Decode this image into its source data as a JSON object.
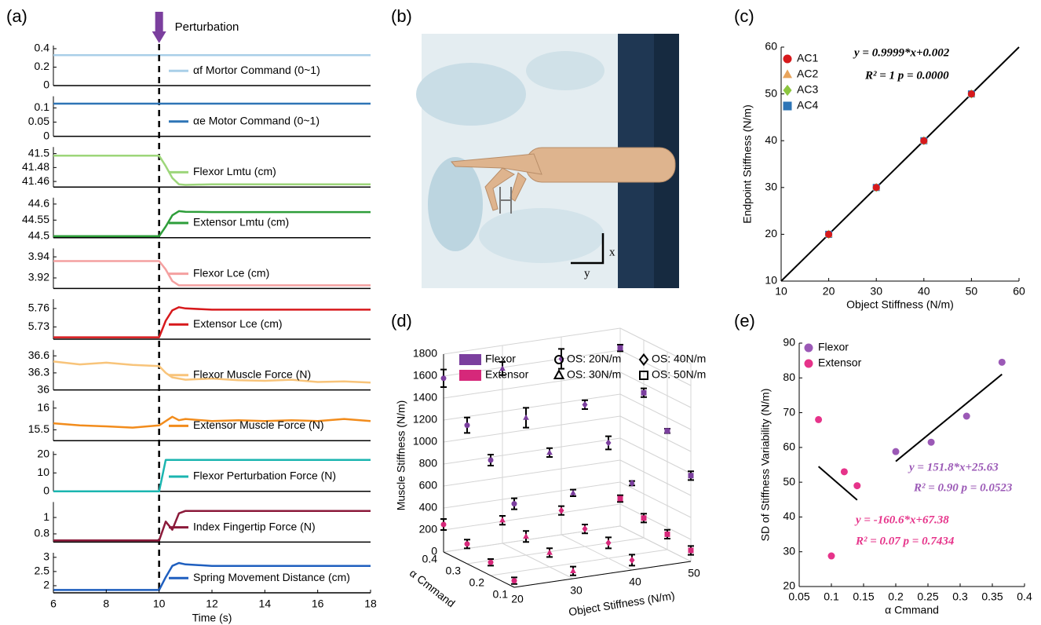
{
  "image_panel": {
    "label": "(b)",
    "axis_labels": [
      "x",
      "y"
    ]
  },
  "chart_data": [
    {
      "type": "line",
      "panel": "(a)",
      "annotation": {
        "text": "Perturbation",
        "x": 10
      },
      "x": [
        6,
        7,
        8,
        9,
        10,
        10.25,
        10.5,
        10.75,
        11,
        12,
        13,
        14,
        15,
        16,
        17,
        18
      ],
      "xlim": [
        6,
        18
      ],
      "ylim": [
        0,
        0.4
      ],
      "yticks": [
        0,
        0.2,
        0.4
      ],
      "series": [
        {
          "name": "αf Mortor Command (0~1)",
          "color": "#a9cfe8",
          "values": [
            0.33,
            0.33,
            0.33,
            0.33,
            0.33,
            0.33,
            0.33,
            0.33,
            0.33,
            0.33,
            0.33,
            0.33,
            0.33,
            0.33,
            0.33,
            0.33
          ]
        }
      ]
    },
    {
      "type": "line",
      "x": [
        6,
        7,
        8,
        9,
        10,
        10.25,
        10.5,
        10.75,
        11,
        12,
        13,
        14,
        15,
        16,
        17,
        18
      ],
      "xlim": [
        6,
        18
      ],
      "ylim": [
        0,
        0.13
      ],
      "yticks": [
        0,
        0.05,
        0.1
      ],
      "series": [
        {
          "name": "αe Motor Command (0~1)",
          "color": "#2e75b6",
          "values": [
            0.115,
            0.115,
            0.115,
            0.115,
            0.115,
            0.115,
            0.115,
            0.115,
            0.115,
            0.115,
            0.115,
            0.115,
            0.115,
            0.115,
            0.115,
            0.115
          ]
        }
      ]
    },
    {
      "type": "line",
      "x": [
        6,
        7,
        8,
        9,
        10,
        10.25,
        10.5,
        10.75,
        11,
        12,
        13,
        14,
        15,
        16,
        17,
        18
      ],
      "xlim": [
        6,
        18
      ],
      "ylim": [
        41.452,
        41.505
      ],
      "yticks": [
        41.46,
        41.48,
        41.5
      ],
      "series": [
        {
          "name": "Flexor Lmtu (cm)",
          "color": "#9dd67a",
          "values": [
            41.497,
            41.497,
            41.497,
            41.497,
            41.497,
            41.482,
            41.465,
            41.456,
            41.455,
            41.456,
            41.456,
            41.456,
            41.456,
            41.456,
            41.456,
            41.456
          ]
        }
      ]
    },
    {
      "type": "line",
      "x": [
        6,
        7,
        8,
        9,
        10,
        10.25,
        10.5,
        10.75,
        11,
        12,
        13,
        14,
        15,
        16,
        17,
        18
      ],
      "xlim": [
        6,
        18
      ],
      "ylim": [
        44.495,
        44.61
      ],
      "yticks": [
        44.5,
        44.55,
        44.6
      ],
      "series": [
        {
          "name": "Extensor Lmtu (cm)",
          "color": "#2e9e3a",
          "values": [
            44.5,
            44.5,
            44.5,
            44.5,
            44.5,
            44.53,
            44.565,
            44.578,
            44.576,
            44.575,
            44.575,
            44.575,
            44.575,
            44.575,
            44.575,
            44.575
          ]
        }
      ]
    },
    {
      "type": "line",
      "x": [
        6,
        7,
        8,
        9,
        10,
        10.25,
        10.5,
        10.75,
        11,
        12,
        13,
        14,
        15,
        16,
        17,
        18
      ],
      "xlim": [
        6,
        18
      ],
      "ylim": [
        3.91,
        3.945
      ],
      "yticks": [
        3.92,
        3.94
      ],
      "series": [
        {
          "name": "Flexor Lce (cm)",
          "color": "#f4a0a0",
          "values": [
            3.936,
            3.936,
            3.936,
            3.936,
            3.936,
            3.928,
            3.917,
            3.913,
            3.913,
            3.913,
            3.913,
            3.913,
            3.913,
            3.913,
            3.913,
            3.913
          ]
        }
      ]
    },
    {
      "type": "line",
      "x": [
        6,
        7,
        8,
        9,
        10,
        10.25,
        10.5,
        10.75,
        11,
        12,
        13,
        14,
        15,
        16,
        17,
        18
      ],
      "xlim": [
        6,
        18
      ],
      "ylim": [
        5.71,
        5.77
      ],
      "yticks": [
        5.73,
        5.76
      ],
      "series": [
        {
          "name": "Extensor Lce (cm)",
          "color": "#d7191c",
          "values": [
            5.713,
            5.713,
            5.713,
            5.713,
            5.713,
            5.74,
            5.757,
            5.762,
            5.76,
            5.758,
            5.758,
            5.758,
            5.758,
            5.758,
            5.758,
            5.758
          ]
        }
      ]
    },
    {
      "type": "line",
      "x": [
        6,
        7,
        8,
        9,
        10,
        10.25,
        10.5,
        10.75,
        11,
        12,
        13,
        14,
        15,
        16,
        17,
        18
      ],
      "xlim": [
        6,
        18
      ],
      "ylim": [
        36,
        36.65
      ],
      "yticks": [
        36,
        36.3,
        36.6
      ],
      "series": [
        {
          "name": "Flexor Muscle Force (N)",
          "color": "#f8c47a",
          "values": [
            36.5,
            36.45,
            36.48,
            36.44,
            36.42,
            36.3,
            36.22,
            36.2,
            36.18,
            36.2,
            36.17,
            36.16,
            36.18,
            36.14,
            36.15,
            36.13
          ]
        }
      ]
    },
    {
      "type": "line",
      "x": [
        6,
        7,
        8,
        9,
        10,
        10.25,
        10.5,
        10.75,
        11,
        12,
        13,
        14,
        15,
        16,
        17,
        18
      ],
      "xlim": [
        6,
        18
      ],
      "ylim": [
        15.25,
        16.1
      ],
      "yticks": [
        15.5,
        16
      ],
      "series": [
        {
          "name": "Extensor Muscle Force (N)",
          "color": "#f28c1c",
          "values": [
            15.65,
            15.6,
            15.58,
            15.55,
            15.6,
            15.7,
            15.8,
            15.72,
            15.75,
            15.7,
            15.72,
            15.7,
            15.72,
            15.7,
            15.75,
            15.7
          ]
        }
      ]
    },
    {
      "type": "line",
      "x": [
        6,
        7,
        8,
        9,
        10,
        10.25,
        10.5,
        10.75,
        11,
        12,
        13,
        14,
        15,
        16,
        17,
        18
      ],
      "xlim": [
        6,
        18
      ],
      "ylim": [
        0,
        20
      ],
      "yticks": [
        0,
        10,
        20
      ],
      "series": [
        {
          "name": "Flexor Perturbation Force (N)",
          "color": "#1bb5b0",
          "values": [
            0,
            0,
            0,
            0,
            0,
            17,
            17,
            17,
            17,
            17,
            17,
            17,
            17,
            17,
            17,
            17
          ]
        }
      ]
    },
    {
      "type": "line",
      "x": [
        6,
        7,
        8,
        9,
        10,
        10.25,
        10.5,
        10.75,
        11,
        12,
        13,
        14,
        15,
        16,
        17,
        18
      ],
      "xlim": [
        6,
        18
      ],
      "ylim": [
        0.7,
        1.15
      ],
      "yticks": [
        0.8,
        1
      ],
      "series": [
        {
          "name": "Index Fingertip Force (N)",
          "color": "#8b1a3a",
          "values": [
            0.72,
            0.72,
            0.72,
            0.72,
            0.72,
            0.95,
            0.85,
            1.05,
            1.08,
            1.08,
            1.08,
            1.08,
            1.08,
            1.08,
            1.08,
            1.08
          ]
        }
      ]
    },
    {
      "type": "line",
      "x": [
        6,
        7,
        8,
        9,
        10,
        10.25,
        10.5,
        10.75,
        11,
        12,
        13,
        14,
        15,
        16,
        17,
        18
      ],
      "xlim": [
        6,
        18
      ],
      "xticks": [
        6,
        8,
        10,
        12,
        14,
        16,
        18
      ],
      "xlabel": "Time (s)",
      "ylim": [
        1.75,
        3.05
      ],
      "yticks": [
        2,
        2.5,
        3
      ],
      "series": [
        {
          "name": "Spring Movement Distance (cm)",
          "color": "#1f5fbf",
          "values": [
            1.85,
            1.85,
            1.85,
            1.85,
            1.85,
            2.3,
            2.7,
            2.8,
            2.75,
            2.7,
            2.7,
            2.7,
            2.7,
            2.7,
            2.7,
            2.7
          ]
        }
      ]
    },
    {
      "type": "scatter",
      "panel": "(c)",
      "xlabel": "Object Stiffness (N/m)",
      "ylabel": "Endpoint Stiffness (N/m)",
      "xlim": [
        10,
        60
      ],
      "xticks": [
        10,
        20,
        30,
        40,
        50,
        60
      ],
      "ylim": [
        10,
        60
      ],
      "yticks": [
        10,
        20,
        30,
        40,
        50,
        60
      ],
      "series": [
        {
          "name": "AC1",
          "color": "#d7191c",
          "marker": "circle",
          "x": [
            20,
            30,
            40,
            50
          ],
          "values": [
            20,
            30,
            40,
            50
          ]
        },
        {
          "name": "AC2",
          "color": "#e8a45c",
          "marker": "triangle",
          "x": [
            20,
            30,
            40,
            50
          ],
          "values": [
            20,
            30,
            40,
            50
          ]
        },
        {
          "name": "AC3",
          "color": "#8cc63f",
          "marker": "diamond",
          "x": [
            20,
            30,
            40,
            50
          ],
          "values": [
            20,
            30,
            40,
            50
          ]
        },
        {
          "name": "AC4",
          "color": "#2e75b6",
          "marker": "square",
          "x": [
            20,
            30,
            40,
            50
          ],
          "values": [
            20,
            30,
            40,
            50
          ]
        }
      ],
      "fits": [
        {
          "slope": 0.9999,
          "intercept": 0.002,
          "x": [
            10,
            60
          ],
          "color": "#000000"
        }
      ],
      "annotations": [
        {
          "text": "y = 0.9999*x+0.002",
          "color": "#000000"
        },
        {
          "text": "R² = 1 p = 0.0000",
          "color": "#000000"
        }
      ]
    },
    {
      "type": "scatter3d",
      "panel": "(d)",
      "xlabel": "Object Stiffness (N/m)",
      "ylabel": "Muscle Stiffness (N/m)",
      "zlabel": "α Cmmand",
      "xlim": [
        20,
        50
      ],
      "xticks": [
        20,
        30,
        40,
        50
      ],
      "zlim": [
        0.1,
        0.4
      ],
      "zticks": [
        0.1,
        0.2,
        0.3,
        0.4
      ],
      "ylim": [
        0,
        1800
      ],
      "yticks": [
        0,
        200,
        400,
        600,
        800,
        1000,
        1200,
        1400,
        1600,
        1800
      ],
      "marker_legend": [
        {
          "label": "OS: 20N/m",
          "value": 20,
          "marker": "circle"
        },
        {
          "label": "OS: 40N/m",
          "value": 40,
          "marker": "diamond"
        },
        {
          "label": "OS: 30N/m",
          "value": 30,
          "marker": "triangle"
        },
        {
          "label": "OS: 50N/m",
          "value": 50,
          "marker": "square"
        }
      ],
      "series": [
        {
          "name": "Flexor",
          "color": "#7b3f9e",
          "x": [
            20,
            30,
            40,
            50,
            20,
            30,
            40,
            50,
            20,
            30,
            40,
            50,
            20,
            30,
            40,
            50
          ],
          "z": [
            0.4,
            0.4,
            0.4,
            0.4,
            0.3,
            0.3,
            0.3,
            0.3,
            0.2,
            0.2,
            0.2,
            0.2,
            0.1,
            0.1,
            0.1,
            0.1
          ],
          "values": [
            1580,
            1590,
            1600,
            1620,
            1260,
            1250,
            1290,
            1320,
            1050,
            1040,
            1050,
            1080,
            760,
            780,
            790,
            780
          ],
          "errors": [
            80,
            60,
            90,
            30,
            70,
            90,
            40,
            40,
            50,
            40,
            60,
            20,
            50,
            30,
            20,
            40
          ]
        },
        {
          "name": "Extensor",
          "color": "#d6287a",
          "x": [
            20,
            30,
            40,
            50,
            20,
            30,
            40,
            50,
            20,
            30,
            40,
            50,
            20,
            30,
            40,
            50
          ],
          "z": [
            0.4,
            0.4,
            0.4,
            0.4,
            0.3,
            0.3,
            0.3,
            0.3,
            0.2,
            0.2,
            0.2,
            0.2,
            0.1,
            0.1,
            0.1,
            0.1
          ],
          "values": [
            250,
            210,
            220,
            250,
            180,
            170,
            160,
            180,
            120,
            130,
            140,
            140,
            60,
            70,
            90,
            100
          ],
          "errors": [
            50,
            40,
            40,
            30,
            40,
            50,
            40,
            40,
            30,
            40,
            50,
            40,
            30,
            40,
            50,
            40
          ]
        }
      ]
    },
    {
      "type": "scatter",
      "panel": "(e)",
      "xlabel": "α Cmmand",
      "ylabel": "SD of Stiffness Variability (N/m)",
      "xlim": [
        0.05,
        0.4
      ],
      "xticks": [
        0.05,
        0.1,
        0.15,
        0.2,
        0.25,
        0.3,
        0.35,
        0.4
      ],
      "ylim": [
        20,
        90
      ],
      "yticks": [
        20,
        30,
        40,
        50,
        60,
        70,
        80,
        90
      ],
      "series": [
        {
          "name": "Flexor",
          "color": "#9b59b6",
          "marker": "circle",
          "x": [
            0.2,
            0.255,
            0.31,
            0.365
          ],
          "values": [
            58.8,
            61.5,
            69,
            84.5
          ]
        },
        {
          "name": "Extensor",
          "color": "#e6338a",
          "marker": "circle",
          "x": [
            0.08,
            0.12,
            0.14,
            0.1
          ],
          "values": [
            68,
            53,
            49,
            28.8
          ]
        }
      ],
      "fits": [
        {
          "slope": 151.8,
          "intercept": 25.63,
          "x": [
            0.2,
            0.365
          ],
          "color": "#000000"
        },
        {
          "slope": -160.6,
          "intercept": 67.38,
          "x": [
            0.08,
            0.14
          ],
          "color": "#000000"
        }
      ],
      "annotations": [
        {
          "text": "y = 151.8*x+25.63",
          "color": "#9b59b6"
        },
        {
          "text": "R² = 0.90 p = 0.0523",
          "color": "#9b59b6"
        },
        {
          "text": "y = -160.6*x+67.38",
          "color": "#e6338a"
        },
        {
          "text": "R² = 0.07 p = 0.7434",
          "color": "#e6338a"
        }
      ]
    }
  ]
}
